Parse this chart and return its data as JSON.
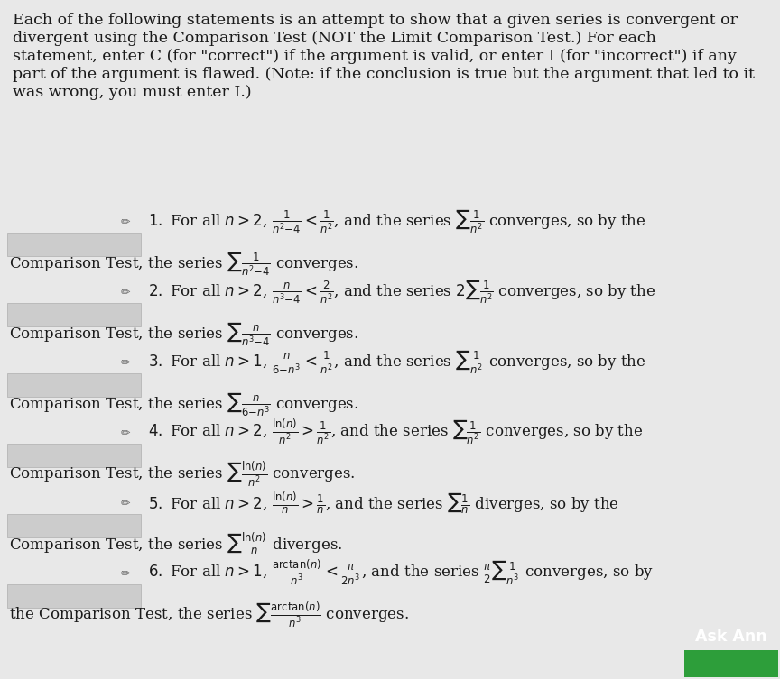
{
  "bg_color": "#e8e8e8",
  "box_color": "#cccccc",
  "box_border": "#bbbbbb",
  "text_color": "#1a1a1a",
  "button_color": "#2d9e3a",
  "button_text": "Ask Ann",
  "figsize": [
    8.64,
    7.53
  ],
  "dpi": 100,
  "intro_lines": [
    "Each of the following statements is an attempt to show that a given series is convergent or",
    "divergent using the Comparison Test (NOT the Limit Comparison Test.) For each",
    "statement, enter C (for \"correct\") if the argument is valid, or enter I (for \"incorrect\") if any",
    "part of the argument is flawed. (Note: if the conclusion is true but the argument that led to it",
    "was wrong, you must enter I.)"
  ],
  "intro_fs": 12.5,
  "item_fs": 12.0,
  "items": [
    {
      "line1_pre_box": "",
      "line1_post_box": "$1.$ For all $n>2$, $\\frac{1}{n^2{-}4}<\\frac{1}{n^2}$, and the series $\\sum\\frac{1}{n^2}$ converges, so by the",
      "line2": "Comparison Test, the series $\\sum\\frac{1}{n^2{-}4}$ converges."
    },
    {
      "line1_pre_box": "",
      "line1_post_box": "$2.$ For all $n>2$, $\\frac{n}{n^3{-}4}<\\frac{2}{n^2}$, and the series $2\\sum\\frac{1}{n^2}$ converges, so by the",
      "line2": "Comparison Test, the series $\\sum\\frac{n}{n^3{-}4}$ converges."
    },
    {
      "line1_pre_box": "",
      "line1_post_box": "$3.$ For all $n>1$, $\\frac{n}{6{-}n^3}<\\frac{1}{n^2}$, and the series $\\sum\\frac{1}{n^2}$ converges, so by the",
      "line2": "Comparison Test, the series $\\sum\\frac{n}{6{-}n^3}$ converges."
    },
    {
      "line1_pre_box": "",
      "line1_post_box": "$4.$ For all $n>2$, $\\frac{\\ln(n)}{n^2}>\\frac{1}{n^2}$, and the series $\\sum\\frac{1}{n^2}$ converges, so by the",
      "line2": "Comparison Test, the series $\\sum\\frac{\\ln(n)}{n^2}$ converges."
    },
    {
      "line1_pre_box": "",
      "line1_post_box": "$5.$ For all $n>2$, $\\frac{\\ln(n)}{n}>\\frac{1}{n}$, and the series $\\sum\\frac{1}{n}$ diverges, so by the",
      "line2": "Comparison Test, the series $\\sum\\frac{\\ln(n)}{n}$ diverges."
    },
    {
      "line1_pre_box": "",
      "line1_post_box": "$6.$ For all $n>1$, $\\frac{\\arctan(n)}{n^3}<\\frac{\\pi}{2n^3}$, and the series $\\frac{\\pi}{2}\\sum\\frac{1}{n^3}$ converges, so by",
      "line2": "the Comparison Test, the series $\\sum\\frac{\\arctan(n)}{n^3}$ converges."
    }
  ]
}
